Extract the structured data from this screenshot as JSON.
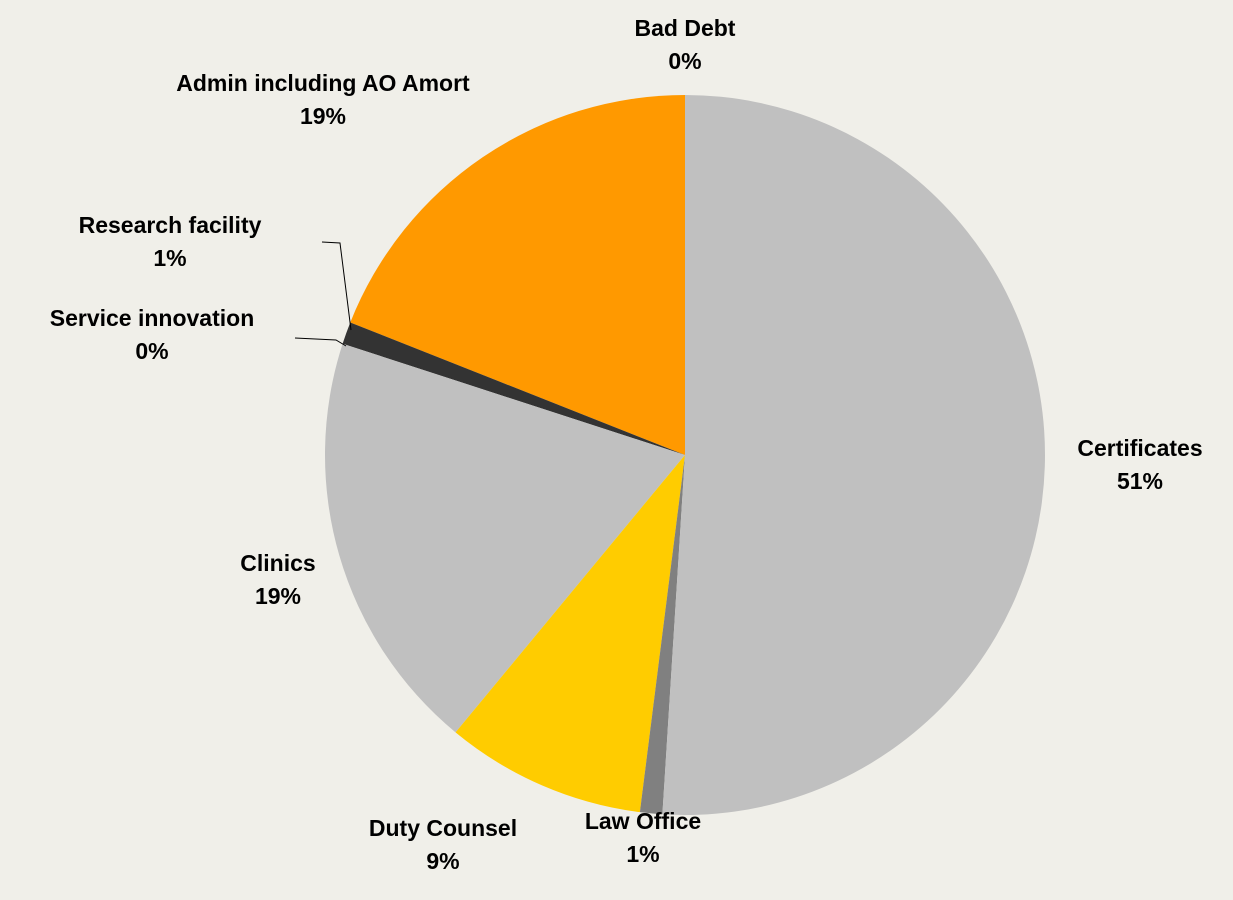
{
  "chart_data": {
    "type": "pie",
    "categories": [
      "Certificates",
      "Law Office",
      "Duty Counsel",
      "Clinics",
      "Service innovation",
      "Research facility",
      "Admin including AO Amort",
      "Bad Debt"
    ],
    "values": [
      51,
      1,
      9,
      19,
      0,
      1,
      19,
      0
    ],
    "value_labels": [
      "51%",
      "1%",
      "9%",
      "19%",
      "0%",
      "1%",
      "19%",
      "0%"
    ],
    "colors": [
      "#c0c0c0",
      "#808080",
      "#ffcc00",
      "#c0c0c0",
      "#969696",
      "#333333",
      "#ff9900",
      "#ffff99"
    ]
  }
}
